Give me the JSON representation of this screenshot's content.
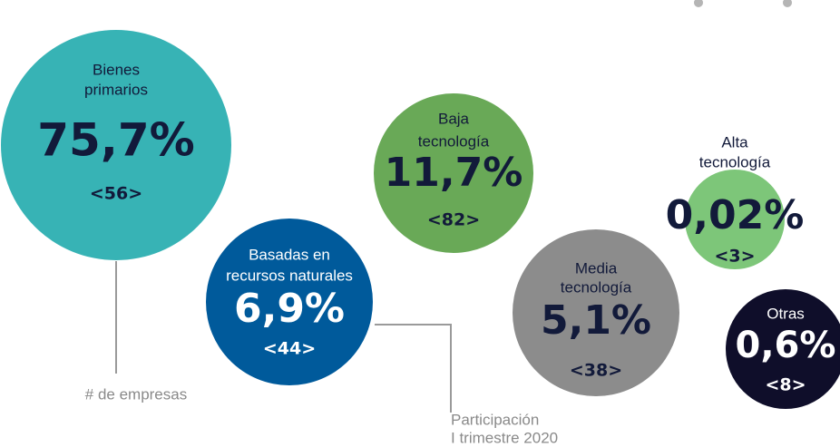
{
  "bubbles": [
    {
      "label": [
        "Bienes",
        "primarios"
      ],
      "share": "75,7%",
      "count": "<56>"
    },
    {
      "label": [
        "Basadas en",
        "recursos naturales"
      ],
      "share": "6,9%",
      "count": "<44>"
    },
    {
      "label": [
        "Baja",
        "tecnología"
      ],
      "share": "11,7%",
      "count": "<82>"
    },
    {
      "label": [
        "Alta",
        "tecnología"
      ],
      "share": "0,02%",
      "count": "<3>"
    },
    {
      "label": [
        "Media",
        "tecnología"
      ],
      "share": "5,1%",
      "count": "<38>"
    },
    {
      "label": [
        "Otras"
      ],
      "share": "0,6%",
      "count": "<8>"
    }
  ],
  "notes": {
    "count_note": "# de empresas",
    "share_note": [
      "Participación",
      "I trimestre 2020"
    ]
  }
}
